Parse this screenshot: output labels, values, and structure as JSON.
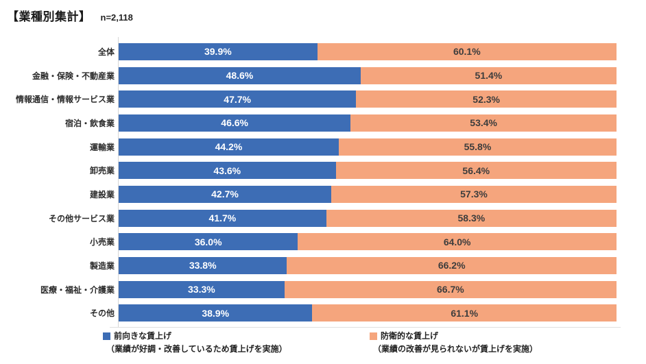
{
  "header": {
    "title": "【業種別集計】",
    "sample_size": "n=2,118"
  },
  "chart_data": {
    "type": "bar",
    "subtype": "horizontal-stacked-100pct",
    "title": "【業種別集計】",
    "sample_size": "n=2,118",
    "xlim": [
      0,
      100
    ],
    "value_suffix": "%",
    "grid": false,
    "legend_position": "bottom",
    "categories": [
      "全体",
      "金融・保険・不動産業",
      "情報通信・情報サービス業",
      "宿泊・飲食業",
      "運輸業",
      "卸売業",
      "建設業",
      "その他サービス業",
      "小売業",
      "製造業",
      "医療・福祉・介護業",
      "その他"
    ],
    "series": [
      {
        "name": "前向きな賃上げ",
        "description": "（業績が好調・改善しているため賃上げを実施）",
        "color": "#3D6DB5",
        "label_color": "#ffffff",
        "values": [
          39.9,
          48.6,
          47.7,
          46.6,
          44.2,
          43.6,
          42.7,
          41.7,
          36.0,
          33.8,
          33.3,
          38.9
        ]
      },
      {
        "name": "防衛的な賃上げ",
        "description": "（業績の改善が見られないが賃上げを実施）",
        "color": "#F5A57D",
        "label_color": "#3d3d3d",
        "values": [
          60.1,
          51.4,
          52.3,
          53.4,
          55.8,
          56.4,
          57.3,
          58.3,
          64.0,
          66.2,
          66.7,
          61.1
        ]
      }
    ]
  }
}
